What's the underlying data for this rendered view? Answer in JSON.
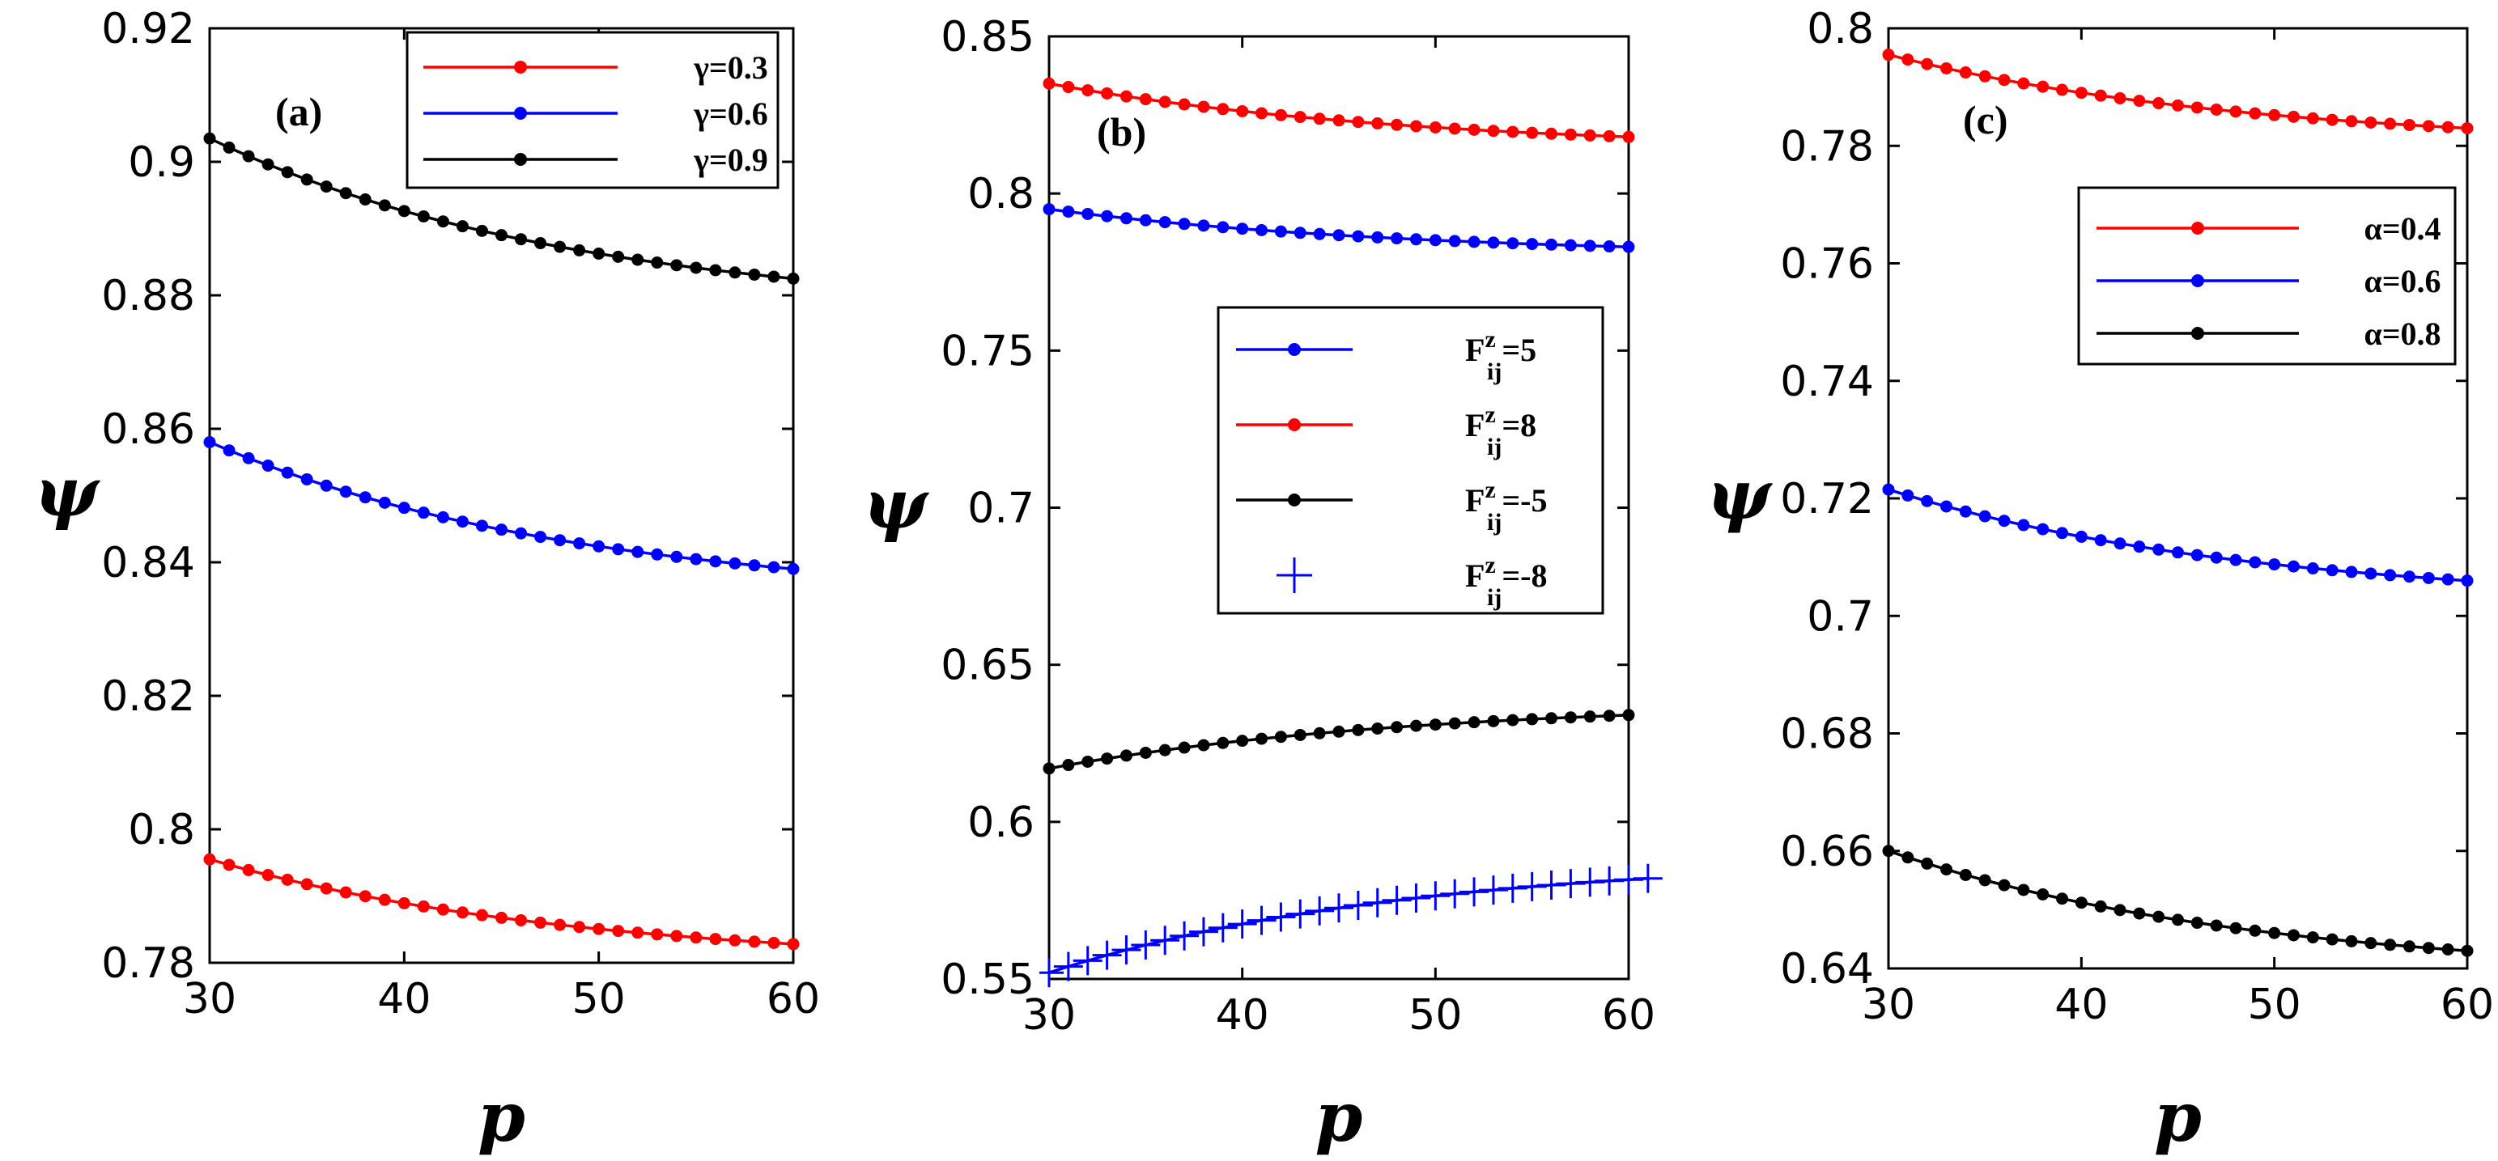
{
  "chart_data": [
    {
      "type": "line",
      "panel_label": "(a)",
      "xlabel": "p",
      "ylabel": "ψ",
      "xlim": [
        30,
        60
      ],
      "ylim": [
        0.78,
        0.92
      ],
      "xticks": [
        30,
        40,
        50,
        60
      ],
      "xtick_labels": [
        "30",
        "40",
        "50",
        "60"
      ],
      "yticks": [
        0.78,
        0.8,
        0.82,
        0.84,
        0.86,
        0.88,
        0.9,
        0.92
      ],
      "ytick_labels": [
        "0.78",
        "0.8",
        "0.82",
        "0.84",
        "0.86",
        "0.88",
        "0.9",
        "0.92"
      ],
      "legend_position": "top-right",
      "series": [
        {
          "name": "γ=0.3",
          "color": "#ff0000",
          "marker": "dot",
          "x_start": 30,
          "x_end": 60,
          "n_points": 31,
          "y_start": 0.7955,
          "y_end": 0.7828,
          "curvature": 1.6
        },
        {
          "name": "γ=0.6",
          "color": "#0000ff",
          "marker": "dot",
          "x_start": 30,
          "x_end": 60,
          "n_points": 31,
          "y_start": 0.858,
          "y_end": 0.839,
          "curvature": 1.6
        },
        {
          "name": "γ=0.9",
          "color": "#000000",
          "marker": "dot",
          "x_start": 30,
          "x_end": 60,
          "n_points": 31,
          "y_start": 0.9035,
          "y_end": 0.8825,
          "curvature": 1.6
        }
      ]
    },
    {
      "type": "line",
      "panel_label": "(b)",
      "xlabel": "p",
      "ylabel": "ψ",
      "xlim": [
        30,
        60
      ],
      "ylim": [
        0.55,
        0.85
      ],
      "xticks": [
        30,
        40,
        50,
        60
      ],
      "xtick_labels": [
        "30",
        "40",
        "50",
        "60"
      ],
      "yticks": [
        0.55,
        0.6,
        0.65,
        0.7,
        0.75,
        0.8,
        0.85
      ],
      "ytick_labels": [
        "0.55",
        "0.6",
        "0.65",
        "0.7",
        "0.75",
        "0.8",
        "0.85"
      ],
      "legend_position": "center-right",
      "series": [
        {
          "name": "F",
          "sup": "z",
          "sub": "ij",
          "suffix": "=5",
          "legend_marker": "dot",
          "color": "#0000ff",
          "marker": "dot",
          "x_start": 30,
          "x_end": 60,
          "n_points": 31,
          "y_start": 0.795,
          "y_end": 0.783,
          "curvature": 1.6
        },
        {
          "name": "F",
          "sup": "z",
          "sub": "ij",
          "suffix": "=8",
          "legend_marker": "dot",
          "color": "#ff0000",
          "marker": "dot",
          "x_start": 30,
          "x_end": 60,
          "n_points": 31,
          "y_start": 0.835,
          "y_end": 0.818,
          "curvature": 1.6
        },
        {
          "name": "F",
          "sup": "z",
          "sub": "ij",
          "suffix": "=-5",
          "legend_marker": "dot",
          "color": "#000000",
          "marker": "dot",
          "x_start": 30,
          "x_end": 60,
          "n_points": 31,
          "y_start": 0.617,
          "y_end": 0.634,
          "curvature": 1.6
        },
        {
          "name": "F",
          "sup": "z",
          "sub": "ij",
          "suffix": "=-8",
          "legend_marker": "plus",
          "color": "#0000ff",
          "marker": "plus",
          "x_start": 30,
          "x_end": 61,
          "n_points": 32,
          "y_start": 0.552,
          "y_end": 0.582,
          "curvature": 1.7
        }
      ]
    },
    {
      "type": "line",
      "panel_label": "(c)",
      "xlabel": "p",
      "ylabel": "ψ",
      "xlim": [
        30,
        60
      ],
      "ylim": [
        0.64,
        0.8
      ],
      "xticks": [
        30,
        40,
        50,
        60
      ],
      "xtick_labels": [
        "30",
        "40",
        "50",
        "60"
      ],
      "yticks": [
        0.64,
        0.66,
        0.68,
        0.7,
        0.72,
        0.74,
        0.76,
        0.78,
        0.8
      ],
      "ytick_labels": [
        "0.64",
        "0.66",
        "0.68",
        "0.7",
        "0.72",
        "0.74",
        "0.76",
        "0.78",
        "0.8"
      ],
      "legend_position": "upper-right",
      "series": [
        {
          "name": "α=0.4",
          "color": "#ff0000",
          "marker": "dot",
          "x_start": 30,
          "x_end": 60,
          "n_points": 31,
          "y_start": 0.7955,
          "y_end": 0.783,
          "curvature": 1.6
        },
        {
          "name": "α=0.6",
          "color": "#0000ff",
          "marker": "dot",
          "x_start": 30,
          "x_end": 60,
          "n_points": 31,
          "y_start": 0.7215,
          "y_end": 0.706,
          "curvature": 1.6
        },
        {
          "name": "α=0.8",
          "color": "#000000",
          "marker": "dot",
          "x_start": 30,
          "x_end": 60,
          "n_points": 31,
          "y_start": 0.66,
          "y_end": 0.643,
          "curvature": 1.6
        }
      ]
    }
  ]
}
